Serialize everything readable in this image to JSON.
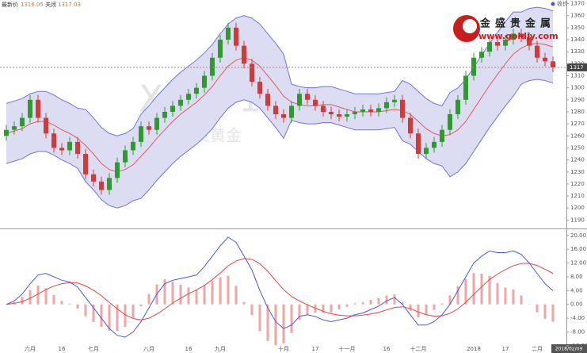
{
  "overlay": {
    "legend_label": "最新价",
    "legend_value": "1316.05",
    "close_label": "关闭",
    "close_value": "1317.03",
    "watermark": "XAU, 1D",
    "watermark_sub": "现货黄金",
    "logo_name": "金盛贵金属",
    "logo_url": "www.goldjy.com",
    "series_legend": "收价",
    "date_box": "2018/02/09"
  },
  "chart_data": [
    {
      "type": "candlestick",
      "up_color": "#2f9a2f",
      "down_color": "#d23a3a",
      "categories": [
        null,
        null,
        null,
        "六月",
        null,
        null,
        null,
        "16",
        null,
        null,
        null,
        "七月",
        null,
        null,
        null,
        null,
        null,
        null,
        "八月",
        null,
        null,
        null,
        null,
        "16",
        null,
        null,
        null,
        "九月",
        null,
        null,
        null,
        null,
        null,
        null,
        null,
        "十月",
        null,
        null,
        null,
        "17",
        null,
        null,
        null,
        "十一月",
        null,
        null,
        null,
        null,
        "16",
        null,
        null,
        null,
        "十二月",
        null,
        null,
        null,
        null,
        null,
        null,
        "2018",
        null,
        null,
        null,
        "17",
        null,
        null,
        null,
        "二月",
        null,
        null
      ],
      "open": [
        1260,
        1265,
        1268,
        1275,
        1290,
        1275,
        1262,
        1250,
        1248,
        1255,
        1245,
        1228,
        1222,
        1215,
        1225,
        1238,
        1248,
        1255,
        1268,
        1265,
        1275,
        1280,
        1285,
        1290,
        1295,
        1300,
        1310,
        1325,
        1340,
        1350,
        1335,
        1320,
        1305,
        1295,
        1285,
        1278,
        1275,
        1285,
        1295,
        1290,
        1285,
        1280,
        1278,
        1276,
        1278,
        1280,
        1282,
        1280,
        1283,
        1288,
        1290,
        1275,
        1262,
        1245,
        1250,
        1255,
        1265,
        1278,
        1290,
        1310,
        1325,
        1330,
        1338,
        1335,
        1340,
        1345,
        1342,
        1335,
        1325,
        1322
      ],
      "high": [
        1269,
        1272,
        1279,
        1294,
        1294,
        1279,
        1266,
        1254,
        1259,
        1259,
        1249,
        1232,
        1226,
        1229,
        1242,
        1252,
        1259,
        1272,
        1272,
        1279,
        1284,
        1289,
        1294,
        1299,
        1304,
        1314,
        1329,
        1344,
        1354,
        1354,
        1339,
        1324,
        1309,
        1299,
        1289,
        1282,
        1289,
        1299,
        1299,
        1294,
        1289,
        1284,
        1282,
        1282,
        1284,
        1286,
        1286,
        1287,
        1292,
        1294,
        1294,
        1279,
        1266,
        1254,
        1259,
        1269,
        1282,
        1294,
        1314,
        1329,
        1334,
        1342,
        1342,
        1344,
        1349,
        1349,
        1346,
        1339,
        1329,
        1326
      ],
      "low": [
        1256,
        1261,
        1264,
        1271,
        1271,
        1258,
        1246,
        1244,
        1244,
        1241,
        1224,
        1218,
        1211,
        1211,
        1221,
        1234,
        1244,
        1251,
        1261,
        1261,
        1271,
        1276,
        1281,
        1286,
        1291,
        1296,
        1306,
        1321,
        1336,
        1331,
        1316,
        1301,
        1291,
        1281,
        1274,
        1271,
        1271,
        1281,
        1286,
        1281,
        1276,
        1274,
        1272,
        1272,
        1274,
        1276,
        1276,
        1276,
        1279,
        1284,
        1271,
        1258,
        1241,
        1241,
        1246,
        1251,
        1261,
        1274,
        1286,
        1306,
        1321,
        1326,
        1331,
        1331,
        1336,
        1338,
        1331,
        1321,
        1318,
        1313
      ],
      "close": [
        1265,
        1268,
        1275,
        1290,
        1275,
        1262,
        1250,
        1248,
        1255,
        1245,
        1228,
        1222,
        1215,
        1225,
        1238,
        1248,
        1255,
        1268,
        1265,
        1275,
        1280,
        1285,
        1290,
        1295,
        1300,
        1310,
        1325,
        1340,
        1350,
        1335,
        1320,
        1305,
        1295,
        1285,
        1278,
        1275,
        1285,
        1295,
        1290,
        1285,
        1280,
        1278,
        1276,
        1278,
        1280,
        1282,
        1280,
        1283,
        1288,
        1290,
        1275,
        1262,
        1245,
        1250,
        1255,
        1265,
        1278,
        1290,
        1310,
        1325,
        1330,
        1338,
        1335,
        1340,
        1345,
        1342,
        1335,
        1325,
        1322,
        1317
      ],
      "bands": {
        "line_color": "#6f74e0",
        "fill": "#dcdcf3",
        "middle_color": "#e05a5a",
        "upper": [
          1287,
          1289,
          1291,
          1295,
          1297,
          1297,
          1294,
          1290,
          1287,
          1283,
          1282,
          1275,
          1267,
          1262,
          1260,
          1262,
          1266,
          1278,
          1285,
          1293,
          1300,
          1307,
          1313,
          1318,
          1323,
          1329,
          1336,
          1345,
          1353,
          1358,
          1360,
          1358,
          1353,
          1345,
          1337,
          1328,
          1303,
          1301,
          1300,
          1300,
          1301,
          1301,
          1299,
          1297,
          1295,
          1295,
          1295,
          1295,
          1296,
          1297,
          1306,
          1303,
          1297,
          1291,
          1287,
          1285,
          1296,
          1300,
          1307,
          1317,
          1327,
          1337,
          1346,
          1355,
          1363,
          1363,
          1366,
          1367,
          1366,
          1364
        ],
        "middle": [
          1262,
          1264,
          1266,
          1270,
          1272,
          1272,
          1269,
          1265,
          1262,
          1258,
          1252,
          1245,
          1237,
          1232,
          1230,
          1232,
          1236,
          1243,
          1250,
          1258,
          1265,
          1272,
          1278,
          1283,
          1288,
          1294,
          1301,
          1310,
          1318,
          1323,
          1325,
          1323,
          1318,
          1310,
          1302,
          1293,
          1288,
          1286,
          1285,
          1285,
          1286,
          1286,
          1284,
          1282,
          1280,
          1280,
          1280,
          1280,
          1281,
          1282,
          1281,
          1278,
          1272,
          1266,
          1262,
          1260,
          1261,
          1265,
          1272,
          1282,
          1292,
          1302,
          1311,
          1320,
          1328,
          1333,
          1336,
          1337,
          1336,
          1334
        ],
        "lower": [
          1237,
          1239,
          1241,
          1245,
          1247,
          1247,
          1244,
          1240,
          1237,
          1233,
          1222,
          1215,
          1207,
          1202,
          1200,
          1202,
          1206,
          1208,
          1215,
          1223,
          1230,
          1237,
          1243,
          1248,
          1253,
          1259,
          1266,
          1275,
          1283,
          1288,
          1290,
          1288,
          1283,
          1275,
          1267,
          1258,
          1273,
          1271,
          1270,
          1270,
          1271,
          1271,
          1269,
          1267,
          1265,
          1265,
          1265,
          1265,
          1266,
          1267,
          1256,
          1253,
          1247,
          1241,
          1237,
          1235,
          1226,
          1230,
          1237,
          1247,
          1257,
          1267,
          1276,
          1285,
          1293,
          1303,
          1306,
          1307,
          1306,
          1304
        ]
      },
      "last_price": 1317,
      "ylim": [
        1183,
        1373
      ],
      "yticks": [
        1190,
        1200,
        1210,
        1220,
        1230,
        1240,
        1250,
        1260,
        1270,
        1280,
        1290,
        1300,
        1310,
        1320,
        1330,
        1340,
        1350,
        1360,
        1370
      ]
    },
    {
      "type": "macd",
      "dif_color": "#4a58d6",
      "dea_color": "#e04848",
      "hist_color": "#f0a4a4",
      "dif": [
        0,
        1,
        3,
        6,
        8.5,
        9,
        8,
        7,
        6.5,
        5,
        2,
        -1,
        -4,
        -7,
        -9,
        -9.5,
        -8,
        -5,
        -1,
        3,
        6,
        7,
        7.5,
        8,
        8.5,
        11,
        14,
        17,
        19.5,
        18,
        14,
        10,
        4,
        -1,
        -5,
        -7,
        -6,
        -3.5,
        -3,
        -3.5,
        -4.5,
        -5,
        -4.5,
        -4,
        -3,
        -2.5,
        -1.5,
        -0.5,
        1,
        2,
        0,
        -3,
        -6,
        -6,
        -5,
        -3,
        0,
        4,
        8,
        12,
        14,
        15.5,
        15,
        15,
        15.5,
        14.5,
        12,
        9,
        6,
        4
      ],
      "dea": [
        0,
        0.3,
        0.8,
        1.8,
        3,
        4.3,
        5.3,
        6,
        6.3,
        6.2,
        5.4,
        4.1,
        2.5,
        0.6,
        -1.3,
        -3,
        -4.1,
        -4.5,
        -4,
        -2.8,
        -1.3,
        0.4,
        1.8,
        3.1,
        4.2,
        5.5,
        7.2,
        9.1,
        11.2,
        12.6,
        13.3,
        13.1,
        11.8,
        9.6,
        6.9,
        4.3,
        2.3,
        1,
        -0.1,
        -1.1,
        -2,
        -2.7,
        -3.1,
        -3.3,
        -3.3,
        -3.1,
        -2.8,
        -2.3,
        -1.6,
        -0.9,
        -0.7,
        -1.2,
        -2.2,
        -3,
        -3.4,
        -3.3,
        -2.6,
        -1.3,
        0.6,
        2.9,
        5.1,
        7.2,
        8.8,
        10.1,
        11.2,
        11.9,
        11.9,
        11.3,
        10.2,
        9
      ],
      "hist": [
        0,
        0.7,
        2.2,
        4.2,
        5.5,
        4.7,
        2.7,
        1,
        0.2,
        -1.2,
        -3.4,
        -5.1,
        -6.5,
        -7.6,
        -7.7,
        -6.5,
        -3.9,
        -0.5,
        3,
        5.8,
        7.3,
        6.6,
        5.7,
        4.9,
        4.3,
        5.5,
        6.8,
        7.9,
        8.3,
        5.4,
        0.7,
        -3.1,
        -7.8,
        -10.6,
        -11.9,
        -11.3,
        -8.3,
        -4.5,
        -2.9,
        -2.4,
        -2.5,
        -2.3,
        -1.4,
        -0.7,
        0.3,
        0.6,
        1.3,
        1.8,
        2.6,
        2.9,
        0.7,
        -1.8,
        -3.8,
        -3,
        -1.6,
        0.3,
        2.6,
        5.3,
        7.4,
        9.1,
        8.9,
        8.3,
        6.2,
        4.9,
        4.3,
        2.6,
        0.1,
        -2.3,
        -4.2,
        -5
      ],
      "ylim": [
        -14.1,
        21.8
      ],
      "yticks": [
        {
          "value": 20,
          "label": "20.00"
        },
        {
          "value": 16,
          "label": "16.00"
        },
        {
          "value": 12,
          "label": "12.00"
        },
        {
          "value": 8,
          "label": "8.00"
        },
        {
          "value": 4,
          "label": "4.00"
        },
        {
          "value": 0,
          "label": "0.00"
        },
        {
          "value": -4,
          "label": "-4.00"
        },
        {
          "value": -8,
          "label": "-8.00"
        },
        {
          "value": -12,
          "label": "-12.00"
        }
      ]
    }
  ]
}
